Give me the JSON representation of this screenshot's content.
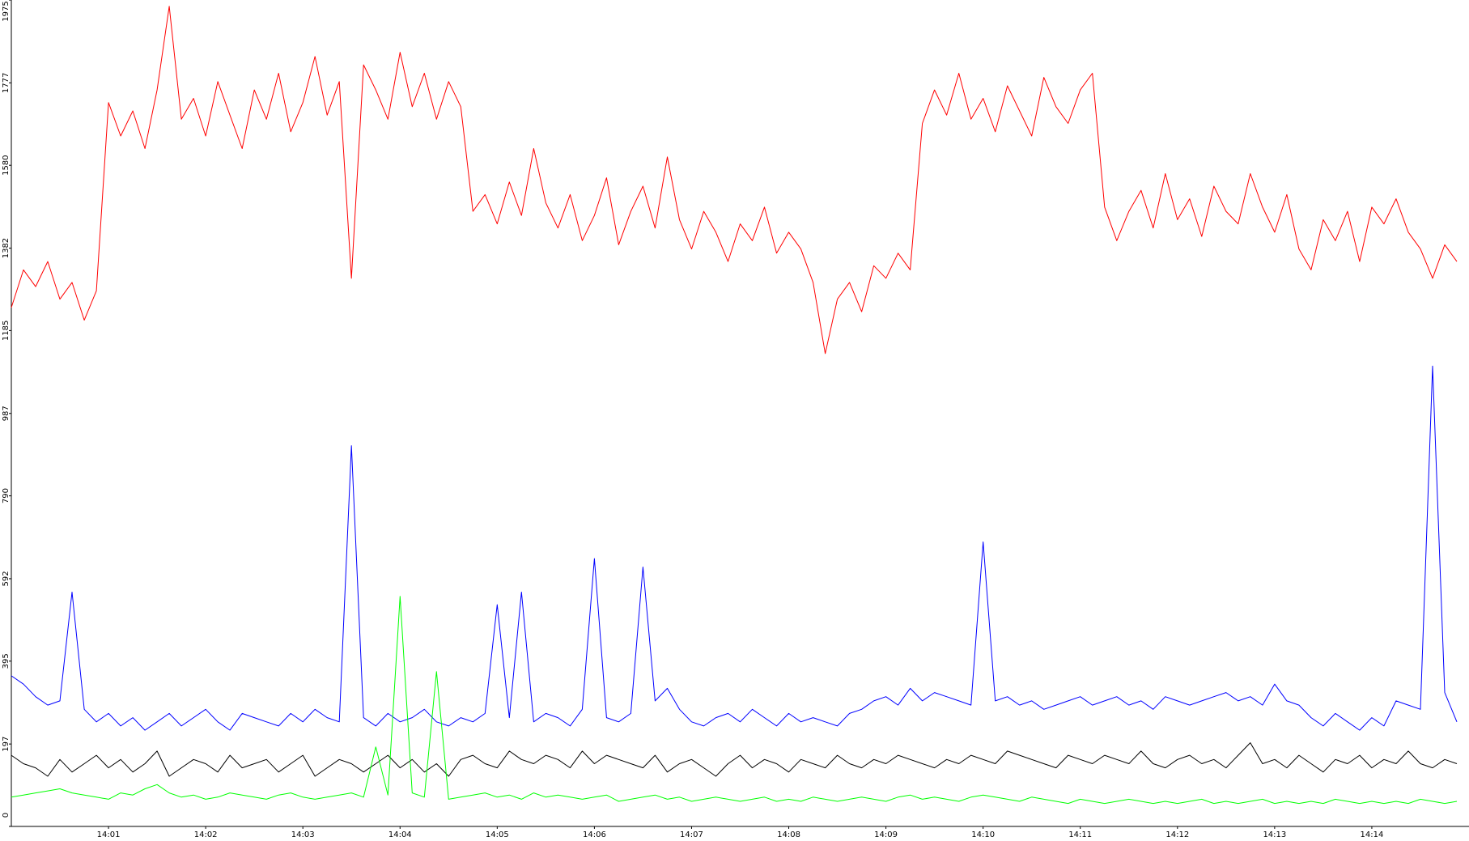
{
  "chart_data": {
    "type": "line",
    "categories": [
      null,
      null,
      null,
      null,
      null,
      null,
      null,
      null,
      "14:01",
      null,
      null,
      null,
      null,
      null,
      null,
      null,
      "14:02",
      null,
      null,
      null,
      null,
      null,
      null,
      null,
      "14:03",
      null,
      null,
      null,
      null,
      null,
      null,
      null,
      "14:04",
      null,
      null,
      null,
      null,
      null,
      null,
      null,
      "14:05",
      null,
      null,
      null,
      null,
      null,
      null,
      null,
      "14:06",
      null,
      null,
      null,
      null,
      null,
      null,
      null,
      "14:07",
      null,
      null,
      null,
      null,
      null,
      null,
      null,
      "14:08",
      null,
      null,
      null,
      null,
      null,
      null,
      null,
      "14:09",
      null,
      null,
      null,
      null,
      null,
      null,
      null,
      "14:10",
      null,
      null,
      null,
      null,
      null,
      null,
      null,
      "14:11",
      null,
      null,
      null,
      null,
      null,
      null,
      null,
      "14:12",
      null,
      null,
      null,
      null,
      null,
      null,
      null,
      "14:13",
      null,
      null,
      null,
      null,
      null,
      null,
      null,
      "14:14",
      null,
      null,
      null,
      null,
      null,
      null,
      null
    ],
    "ylim": [
      0,
      1975
    ],
    "yticks": [
      0,
      197,
      395,
      592,
      790,
      987,
      1185,
      1382,
      1580,
      1777,
      1975
    ],
    "series": [
      {
        "color": "#ff0000",
        "values": [
          1240,
          1330,
          1290,
          1350,
          1260,
          1300,
          1210,
          1280,
          1730,
          1650,
          1710,
          1620,
          1760,
          1960,
          1690,
          1740,
          1650,
          1780,
          1700,
          1620,
          1760,
          1690,
          1800,
          1660,
          1730,
          1840,
          1700,
          1780,
          1310,
          1820,
          1760,
          1690,
          1850,
          1720,
          1800,
          1690,
          1780,
          1720,
          1470,
          1510,
          1440,
          1540,
          1460,
          1620,
          1490,
          1430,
          1510,
          1400,
          1460,
          1550,
          1390,
          1470,
          1530,
          1430,
          1600,
          1450,
          1380,
          1470,
          1420,
          1350,
          1440,
          1400,
          1480,
          1370,
          1420,
          1380,
          1300,
          1130,
          1260,
          1300,
          1230,
          1340,
          1310,
          1370,
          1330,
          1680,
          1760,
          1700,
          1800,
          1690,
          1740,
          1660,
          1770,
          1710,
          1650,
          1790,
          1720,
          1680,
          1760,
          1800,
          1480,
          1400,
          1470,
          1520,
          1430,
          1560,
          1450,
          1500,
          1410,
          1530,
          1470,
          1440,
          1560,
          1480,
          1420,
          1510,
          1380,
          1330,
          1450,
          1400,
          1470,
          1350,
          1480,
          1440,
          1500,
          1420,
          1380,
          1310,
          1390,
          1350
        ]
      },
      {
        "color": "#0000ff",
        "values": [
          360,
          340,
          310,
          290,
          300,
          560,
          280,
          250,
          270,
          240,
          260,
          230,
          250,
          270,
          240,
          260,
          280,
          250,
          230,
          270,
          260,
          250,
          240,
          270,
          250,
          280,
          260,
          250,
          910,
          260,
          240,
          270,
          250,
          260,
          280,
          250,
          240,
          260,
          250,
          270,
          530,
          260,
          560,
          250,
          270,
          260,
          240,
          280,
          640,
          260,
          250,
          270,
          620,
          300,
          330,
          280,
          250,
          240,
          260,
          270,
          250,
          280,
          260,
          240,
          270,
          250,
          260,
          250,
          240,
          270,
          280,
          300,
          310,
          290,
          330,
          300,
          320,
          310,
          300,
          290,
          680,
          300,
          310,
          290,
          300,
          280,
          290,
          300,
          310,
          290,
          300,
          310,
          290,
          300,
          280,
          310,
          300,
          290,
          300,
          310,
          320,
          300,
          310,
          290,
          340,
          300,
          290,
          260,
          240,
          270,
          250,
          230,
          260,
          240,
          300,
          290,
          280,
          1100,
          320,
          250
        ]
      },
      {
        "color": "#000000",
        "values": [
          170,
          150,
          140,
          120,
          160,
          130,
          150,
          170,
          140,
          160,
          130,
          150,
          180,
          120,
          140,
          160,
          150,
          130,
          170,
          140,
          150,
          160,
          130,
          150,
          170,
          120,
          140,
          160,
          150,
          130,
          150,
          170,
          140,
          160,
          130,
          150,
          120,
          160,
          170,
          150,
          140,
          180,
          160,
          150,
          170,
          160,
          140,
          180,
          150,
          170,
          160,
          150,
          140,
          170,
          130,
          150,
          160,
          140,
          120,
          150,
          170,
          140,
          160,
          150,
          130,
          160,
          150,
          140,
          170,
          150,
          140,
          160,
          150,
          170,
          160,
          150,
          140,
          160,
          150,
          170,
          160,
          150,
          180,
          170,
          160,
          150,
          140,
          170,
          160,
          150,
          170,
          160,
          150,
          180,
          150,
          140,
          160,
          170,
          150,
          160,
          140,
          170,
          200,
          150,
          160,
          140,
          170,
          150,
          130,
          160,
          150,
          170,
          140,
          160,
          150,
          180,
          150,
          140,
          160,
          150
        ]
      },
      {
        "color": "#00ff00",
        "values": [
          70,
          75,
          80,
          85,
          90,
          80,
          75,
          70,
          65,
          80,
          75,
          90,
          100,
          80,
          70,
          75,
          65,
          70,
          80,
          75,
          70,
          65,
          75,
          80,
          70,
          65,
          70,
          75,
          80,
          70,
          190,
          75,
          550,
          80,
          70,
          370,
          65,
          70,
          75,
          80,
          70,
          75,
          65,
          80,
          70,
          75,
          70,
          65,
          70,
          75,
          60,
          65,
          70,
          75,
          65,
          70,
          60,
          65,
          70,
          65,
          60,
          65,
          70,
          60,
          65,
          60,
          70,
          65,
          60,
          65,
          70,
          65,
          60,
          70,
          75,
          65,
          70,
          65,
          60,
          70,
          75,
          70,
          65,
          60,
          70,
          65,
          60,
          55,
          65,
          60,
          55,
          60,
          65,
          60,
          55,
          60,
          55,
          60,
          65,
          55,
          60,
          55,
          60,
          65,
          55,
          60,
          55,
          60,
          55,
          65,
          60,
          55,
          60,
          55,
          60,
          55,
          65,
          60,
          55,
          60
        ]
      }
    ]
  }
}
